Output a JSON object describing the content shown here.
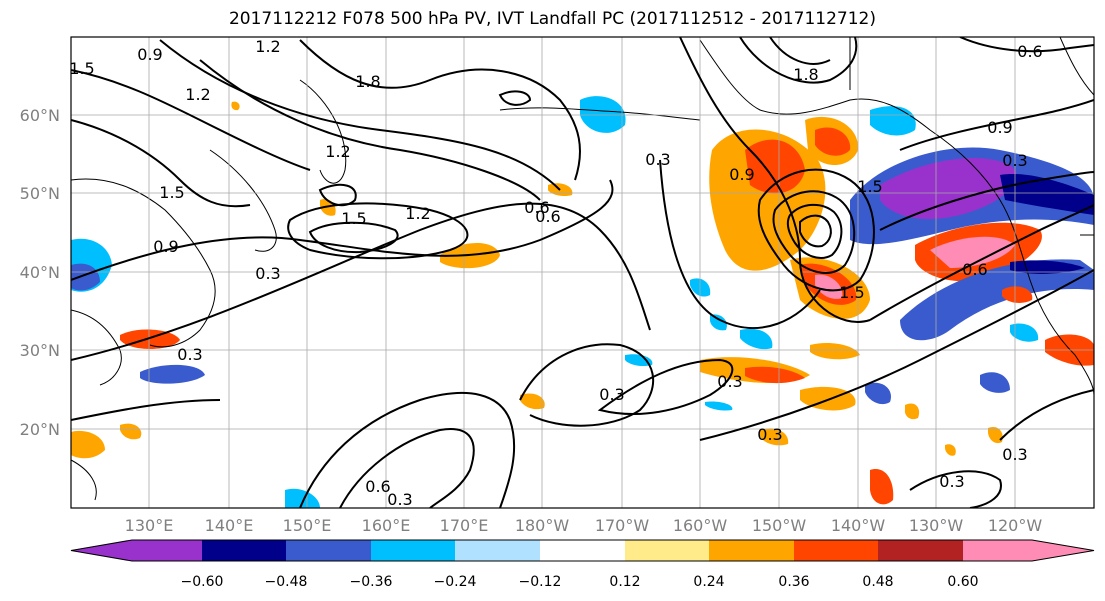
{
  "title": "2017112212 F078 500 hPa PV, IVT Landfall PC (2017112512 - 2017112712)",
  "lat_labels": [
    "60°N",
    "50°N",
    "40°N",
    "30°N",
    "20°N"
  ],
  "lon_labels": [
    "130°E",
    "140°E",
    "150°E",
    "160°E",
    "170°E",
    "180°W",
    "170°W",
    "160°W",
    "150°W",
    "140°W",
    "130°W",
    "120°W"
  ],
  "contour_labels": [
    "1.5",
    "0.9",
    "1.2",
    "1.8",
    "1.2",
    "1.5",
    "1.5",
    "1.2",
    "0.9",
    "0.3",
    "0.6",
    "0.3",
    "0.6",
    "1.2",
    "0.9",
    "1.5",
    "0.3",
    "0.6",
    "1.8",
    "1.5",
    "0.9",
    "0.3",
    "0.6",
    "0.3",
    "0.3",
    "0.3",
    "0.3",
    "0.6",
    "0.3",
    "0.3"
  ],
  "colorbar": {
    "ticks": [
      "−0.60",
      "−0.48",
      "−0.36",
      "−0.24",
      "−0.12",
      "0.12",
      "0.24",
      "0.36",
      "0.48",
      "0.60"
    ],
    "colors": [
      "#9932cc",
      "#00008b",
      "#3a5bcd",
      "#00bfff",
      "#b0e2ff",
      "#ffffff",
      "#ffeb8a",
      "#ffa500",
      "#ff4500",
      "#b22222",
      "#ff8cb4"
    ]
  }
}
